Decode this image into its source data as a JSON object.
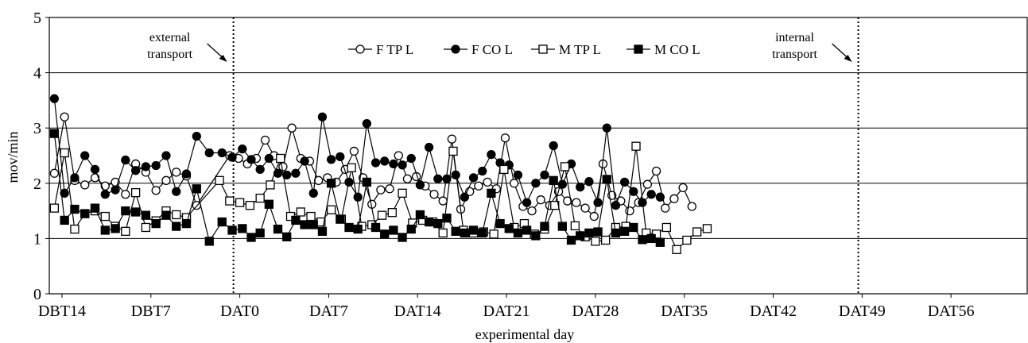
{
  "chart_data": {
    "type": "line",
    "title": "",
    "xlabel": "experimental day",
    "ylabel": "mov/min",
    "ylim": [
      0,
      5
    ],
    "yticks": [
      "0",
      "1",
      "2",
      "3",
      "4",
      "5"
    ],
    "x_tick_labels": [
      {
        "label": "DBT14",
        "day": -14
      },
      {
        "label": "DBT7",
        "day": -7
      },
      {
        "label": "DAT0",
        "day": 0
      },
      {
        "label": "DAT7",
        "day": 7
      },
      {
        "label": "DAT14",
        "day": 14
      },
      {
        "label": "DAT21",
        "day": 21
      },
      {
        "label": "DAT28",
        "day": 28
      },
      {
        "label": "DAT35",
        "day": 35
      },
      {
        "label": "DAT42",
        "day": 42
      },
      {
        "label": "DAT49",
        "day": 49
      },
      {
        "label": "DAT56",
        "day": 56
      }
    ],
    "xlim": [
      -15,
      62
    ],
    "grid": "horizontal",
    "legend_position": "top-center",
    "annotations": [
      {
        "text_line1": "external",
        "text_line2": "transport",
        "day": -0.5
      },
      {
        "text_line1": "internal",
        "text_line2": "transport",
        "day": 48.7
      }
    ],
    "series": [
      {
        "name": "F TP L",
        "marker": "circle-open",
        "points": [
          [
            -14.6,
            2.18
          ],
          [
            -13.8,
            3.2
          ],
          [
            -13,
            2.05
          ],
          [
            -12.2,
            1.97
          ],
          [
            -11.4,
            2.1
          ],
          [
            -10.6,
            1.95
          ],
          [
            -9.8,
            2.02
          ],
          [
            -9,
            1.8
          ],
          [
            -8.2,
            2.35
          ],
          [
            -7.4,
            2.2
          ],
          [
            -6.6,
            1.87
          ],
          [
            -5.8,
            2.05
          ],
          [
            -5,
            2.2
          ],
          [
            -4.2,
            2.13
          ],
          [
            -3.4,
            1.6
          ],
          [
            -0.8,
            2.5
          ],
          [
            -0.1,
            2.45
          ],
          [
            0.6,
            2.35
          ],
          [
            1.3,
            2.45
          ],
          [
            2,
            2.78
          ],
          [
            2.7,
            2.5
          ],
          [
            3.4,
            2.3
          ],
          [
            4.1,
            3.0
          ],
          [
            4.8,
            2.45
          ],
          [
            5.5,
            2.4
          ],
          [
            6.2,
            2.05
          ],
          [
            6.9,
            2.1
          ],
          [
            7.6,
            2.02
          ],
          [
            8.3,
            2.25
          ],
          [
            9,
            2.58
          ],
          [
            9.7,
            2.1
          ],
          [
            10.4,
            1.62
          ],
          [
            11.1,
            1.88
          ],
          [
            11.8,
            1.9
          ],
          [
            12.5,
            2.5
          ],
          [
            13.2,
            2.08
          ],
          [
            13.9,
            2.12
          ],
          [
            14.6,
            1.95
          ],
          [
            15.3,
            1.8
          ],
          [
            16,
            1.68
          ],
          [
            16.7,
            2.8
          ],
          [
            17.4,
            1.53
          ],
          [
            18.1,
            1.85
          ],
          [
            18.8,
            1.95
          ],
          [
            19.5,
            2.02
          ],
          [
            20.2,
            1.9
          ],
          [
            20.9,
            2.82
          ],
          [
            21.6,
            2.0
          ],
          [
            22.3,
            1.58
          ],
          [
            23,
            1.5
          ],
          [
            23.7,
            1.7
          ],
          [
            24.4,
            1.6
          ],
          [
            25.1,
            1.85
          ],
          [
            25.8,
            1.68
          ],
          [
            26.5,
            1.65
          ],
          [
            27.2,
            1.55
          ],
          [
            27.9,
            1.4
          ],
          [
            28.6,
            2.35
          ],
          [
            29.3,
            1.78
          ],
          [
            30,
            1.68
          ],
          [
            30.7,
            1.5
          ],
          [
            31.4,
            1.65
          ],
          [
            32.1,
            1.98
          ],
          [
            32.8,
            2.22
          ],
          [
            33.5,
            1.55
          ],
          [
            34.2,
            1.72
          ],
          [
            34.9,
            1.92
          ],
          [
            35.6,
            1.58
          ]
        ]
      },
      {
        "name": "F CO L",
        "marker": "circle-filled",
        "points": [
          [
            -14.6,
            3.53
          ],
          [
            -13.8,
            1.82
          ],
          [
            -13,
            2.1
          ],
          [
            -12.2,
            2.5
          ],
          [
            -11.4,
            2.25
          ],
          [
            -10.6,
            1.8
          ],
          [
            -9.8,
            1.88
          ],
          [
            -9,
            2.42
          ],
          [
            -8.2,
            2.23
          ],
          [
            -7.4,
            2.3
          ],
          [
            -6.6,
            2.32
          ],
          [
            -5.8,
            2.5
          ],
          [
            -5,
            1.85
          ],
          [
            -4.2,
            2.17
          ],
          [
            -3.4,
            2.85
          ],
          [
            -2.4,
            2.55
          ],
          [
            -1.4,
            2.55
          ],
          [
            -0.6,
            2.47
          ],
          [
            0.2,
            2.62
          ],
          [
            0.9,
            2.43
          ],
          [
            1.6,
            2.25
          ],
          [
            2.3,
            2.45
          ],
          [
            3,
            2.18
          ],
          [
            3.7,
            2.15
          ],
          [
            4.4,
            2.18
          ],
          [
            5.1,
            2.4
          ],
          [
            5.8,
            1.82
          ],
          [
            6.5,
            3.2
          ],
          [
            7.2,
            2.43
          ],
          [
            7.9,
            2.48
          ],
          [
            8.6,
            2.02
          ],
          [
            9.3,
            1.75
          ],
          [
            10,
            3.08
          ],
          [
            10.7,
            2.37
          ],
          [
            11.4,
            2.4
          ],
          [
            12.1,
            2.35
          ],
          [
            12.8,
            2.33
          ],
          [
            13.5,
            2.45
          ],
          [
            14.2,
            1.97
          ],
          [
            14.9,
            2.65
          ],
          [
            15.6,
            2.08
          ],
          [
            16.3,
            2.08
          ],
          [
            17,
            2.15
          ],
          [
            17.7,
            1.75
          ],
          [
            18.4,
            2.1
          ],
          [
            19.1,
            2.22
          ],
          [
            19.8,
            2.52
          ],
          [
            20.5,
            2.37
          ],
          [
            21.2,
            2.33
          ],
          [
            21.9,
            2.15
          ],
          [
            22.6,
            1.65
          ],
          [
            23.3,
            2.0
          ],
          [
            24,
            2.15
          ],
          [
            24.7,
            2.68
          ],
          [
            25.4,
            1.98
          ],
          [
            26.1,
            2.35
          ],
          [
            26.8,
            1.93
          ],
          [
            27.5,
            2.03
          ],
          [
            28.2,
            1.65
          ],
          [
            28.9,
            3.0
          ],
          [
            29.6,
            1.6
          ],
          [
            30.3,
            2.02
          ],
          [
            31,
            1.85
          ],
          [
            31.7,
            1.65
          ],
          [
            32.4,
            1.8
          ],
          [
            33.1,
            1.75
          ]
        ]
      },
      {
        "name": "M TP L",
        "marker": "square-open",
        "points": [
          [
            -14.6,
            1.55
          ],
          [
            -13.8,
            2.55
          ],
          [
            -13,
            1.17
          ],
          [
            -12.2,
            1.45
          ],
          [
            -11.4,
            1.5
          ],
          [
            -10.6,
            1.4
          ],
          [
            -9.8,
            1.22
          ],
          [
            -9,
            1.13
          ],
          [
            -8.2,
            1.83
          ],
          [
            -7.4,
            1.2
          ],
          [
            -6.6,
            1.32
          ],
          [
            -5.8,
            1.5
          ],
          [
            -5,
            1.43
          ],
          [
            -4.2,
            1.38
          ],
          [
            -1.6,
            2.05
          ],
          [
            -0.8,
            1.68
          ],
          [
            0,
            1.65
          ],
          [
            0.8,
            1.6
          ],
          [
            1.6,
            1.73
          ],
          [
            2.4,
            1.97
          ],
          [
            3.2,
            2.45
          ],
          [
            4,
            1.4
          ],
          [
            4.8,
            1.48
          ],
          [
            5.6,
            1.4
          ],
          [
            6.4,
            1.3
          ],
          [
            7.2,
            1.52
          ],
          [
            8,
            1.35
          ],
          [
            8.8,
            2.28
          ],
          [
            9.6,
            1.22
          ],
          [
            10.4,
            1.25
          ],
          [
            11.2,
            1.42
          ],
          [
            12,
            1.47
          ],
          [
            12.8,
            1.82
          ],
          [
            13.6,
            1.28
          ],
          [
            14.4,
            1.33
          ],
          [
            15.2,
            1.3
          ],
          [
            16,
            1.1
          ],
          [
            16.8,
            2.58
          ],
          [
            17.6,
            1.15
          ],
          [
            18.4,
            1.1
          ],
          [
            19.2,
            1.12
          ],
          [
            20,
            1.08
          ],
          [
            20.8,
            2.25
          ],
          [
            21.6,
            1.2
          ],
          [
            22.4,
            1.27
          ],
          [
            23.2,
            1.08
          ],
          [
            24,
            1.17
          ],
          [
            24.8,
            1.6
          ],
          [
            25.6,
            2.3
          ],
          [
            26.4,
            1.23
          ],
          [
            27.2,
            1.03
          ],
          [
            28,
            0.95
          ],
          [
            28.8,
            0.97
          ],
          [
            29.6,
            1.2
          ],
          [
            30.4,
            1.22
          ],
          [
            31.2,
            2.67
          ],
          [
            32,
            1.1
          ],
          [
            32.8,
            1.08
          ],
          [
            33.6,
            1.2
          ],
          [
            34.4,
            0.8
          ],
          [
            35.2,
            0.97
          ],
          [
            36,
            1.12
          ],
          [
            36.8,
            1.18
          ]
        ]
      },
      {
        "name": "M CO L",
        "marker": "square-filled",
        "points": [
          [
            -14.6,
            2.9
          ],
          [
            -13.8,
            1.33
          ],
          [
            -13,
            1.53
          ],
          [
            -12.2,
            1.45
          ],
          [
            -11.4,
            1.55
          ],
          [
            -10.6,
            1.15
          ],
          [
            -9.8,
            1.18
          ],
          [
            -9,
            1.5
          ],
          [
            -8.2,
            1.48
          ],
          [
            -7.4,
            1.42
          ],
          [
            -6.6,
            1.27
          ],
          [
            -5.8,
            1.42
          ],
          [
            -5,
            1.22
          ],
          [
            -4.2,
            1.27
          ],
          [
            -3.4,
            1.9
          ],
          [
            -2.4,
            0.95
          ],
          [
            -1.4,
            1.3
          ],
          [
            -0.6,
            1.15
          ],
          [
            0.2,
            1.18
          ],
          [
            0.9,
            1.02
          ],
          [
            1.6,
            1.1
          ],
          [
            2.3,
            1.62
          ],
          [
            3,
            1.17
          ],
          [
            3.7,
            1.03
          ],
          [
            4.4,
            1.33
          ],
          [
            5.1,
            1.25
          ],
          [
            5.8,
            1.25
          ],
          [
            6.5,
            1.13
          ],
          [
            7.2,
            2.0
          ],
          [
            7.9,
            1.35
          ],
          [
            8.6,
            1.2
          ],
          [
            9.3,
            1.17
          ],
          [
            10,
            2.02
          ],
          [
            10.7,
            1.2
          ],
          [
            11.4,
            1.08
          ],
          [
            12.1,
            1.15
          ],
          [
            12.8,
            1.02
          ],
          [
            13.5,
            1.17
          ],
          [
            14.2,
            1.43
          ],
          [
            14.9,
            1.3
          ],
          [
            15.6,
            1.27
          ],
          [
            16.3,
            1.37
          ],
          [
            17,
            1.13
          ],
          [
            17.7,
            1.1
          ],
          [
            18.4,
            1.15
          ],
          [
            19.1,
            1.1
          ],
          [
            19.8,
            1.82
          ],
          [
            20.5,
            1.27
          ],
          [
            21.2,
            1.18
          ],
          [
            21.9,
            1.1
          ],
          [
            22.6,
            1.15
          ],
          [
            23.3,
            1.05
          ],
          [
            24,
            1.22
          ],
          [
            24.7,
            2.05
          ],
          [
            25.4,
            1.22
          ],
          [
            26.1,
            0.97
          ],
          [
            26.8,
            1.05
          ],
          [
            27.5,
            1.1
          ],
          [
            28.2,
            1.12
          ],
          [
            28.9,
            2.07
          ],
          [
            29.6,
            1.1
          ],
          [
            30.3,
            1.13
          ],
          [
            31,
            1.2
          ],
          [
            31.7,
            0.98
          ],
          [
            32.4,
            1.0
          ],
          [
            33.1,
            0.93
          ]
        ]
      }
    ]
  }
}
